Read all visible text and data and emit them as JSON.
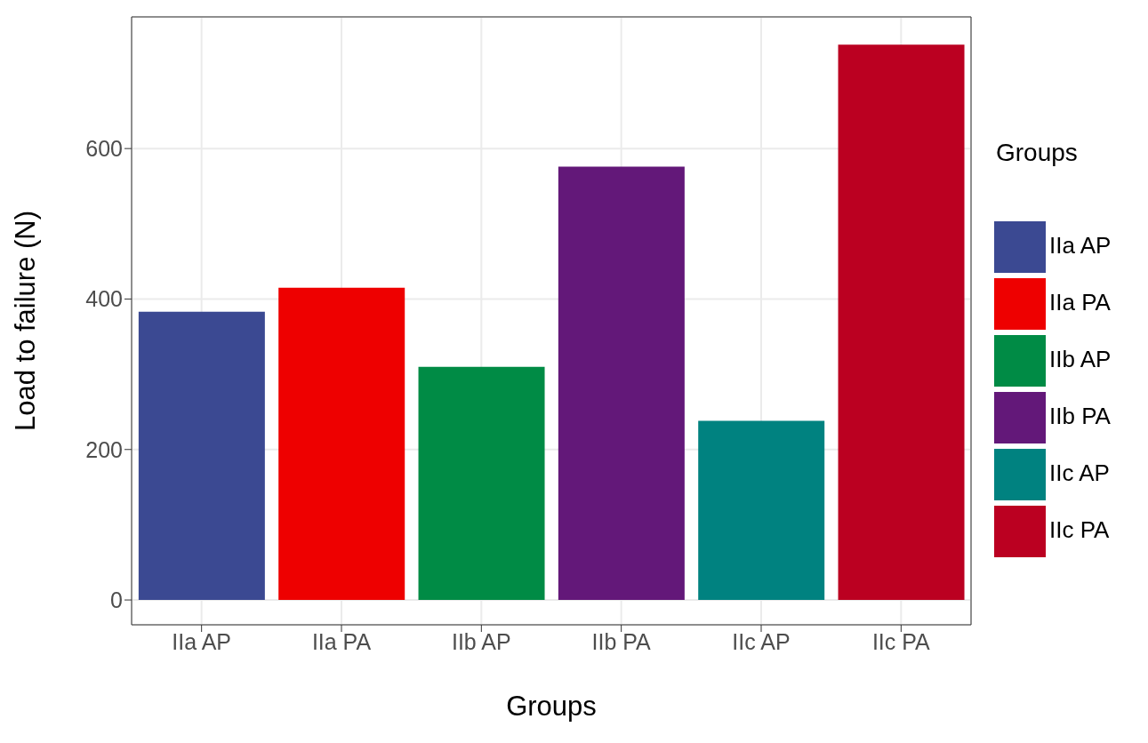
{
  "chart_data": {
    "type": "bar",
    "xlabel": "Groups",
    "ylabel": "Load to failure  (N)",
    "legend_title": "Groups",
    "categories": [
      "IIa AP",
      "IIa PA",
      "IIb AP",
      "IIb PA",
      "IIc AP",
      "IIc PA"
    ],
    "series": [
      {
        "name": "IIa AP",
        "color": "#3b4992",
        "values": [
          383,
          null,
          null,
          null,
          null,
          null
        ]
      },
      {
        "name": "IIa PA",
        "color": "#ee0000",
        "values": [
          null,
          415,
          null,
          null,
          null,
          null
        ]
      },
      {
        "name": "IIb AP",
        "color": "#008b45",
        "values": [
          null,
          null,
          310,
          null,
          null,
          null
        ]
      },
      {
        "name": "IIb PA",
        "color": "#631879",
        "values": [
          null,
          null,
          null,
          576,
          null,
          null
        ]
      },
      {
        "name": "IIc AP",
        "color": "#008280",
        "values": [
          null,
          null,
          null,
          null,
          238,
          null
        ]
      },
      {
        "name": "IIc PA",
        "color": "#bb0021",
        "values": [
          null,
          null,
          null,
          null,
          null,
          738
        ]
      }
    ],
    "stacked": true,
    "ylim": [
      -33,
      775
    ],
    "yticks": [
      0,
      200,
      400,
      600
    ],
    "grid": true,
    "legend": "right"
  }
}
